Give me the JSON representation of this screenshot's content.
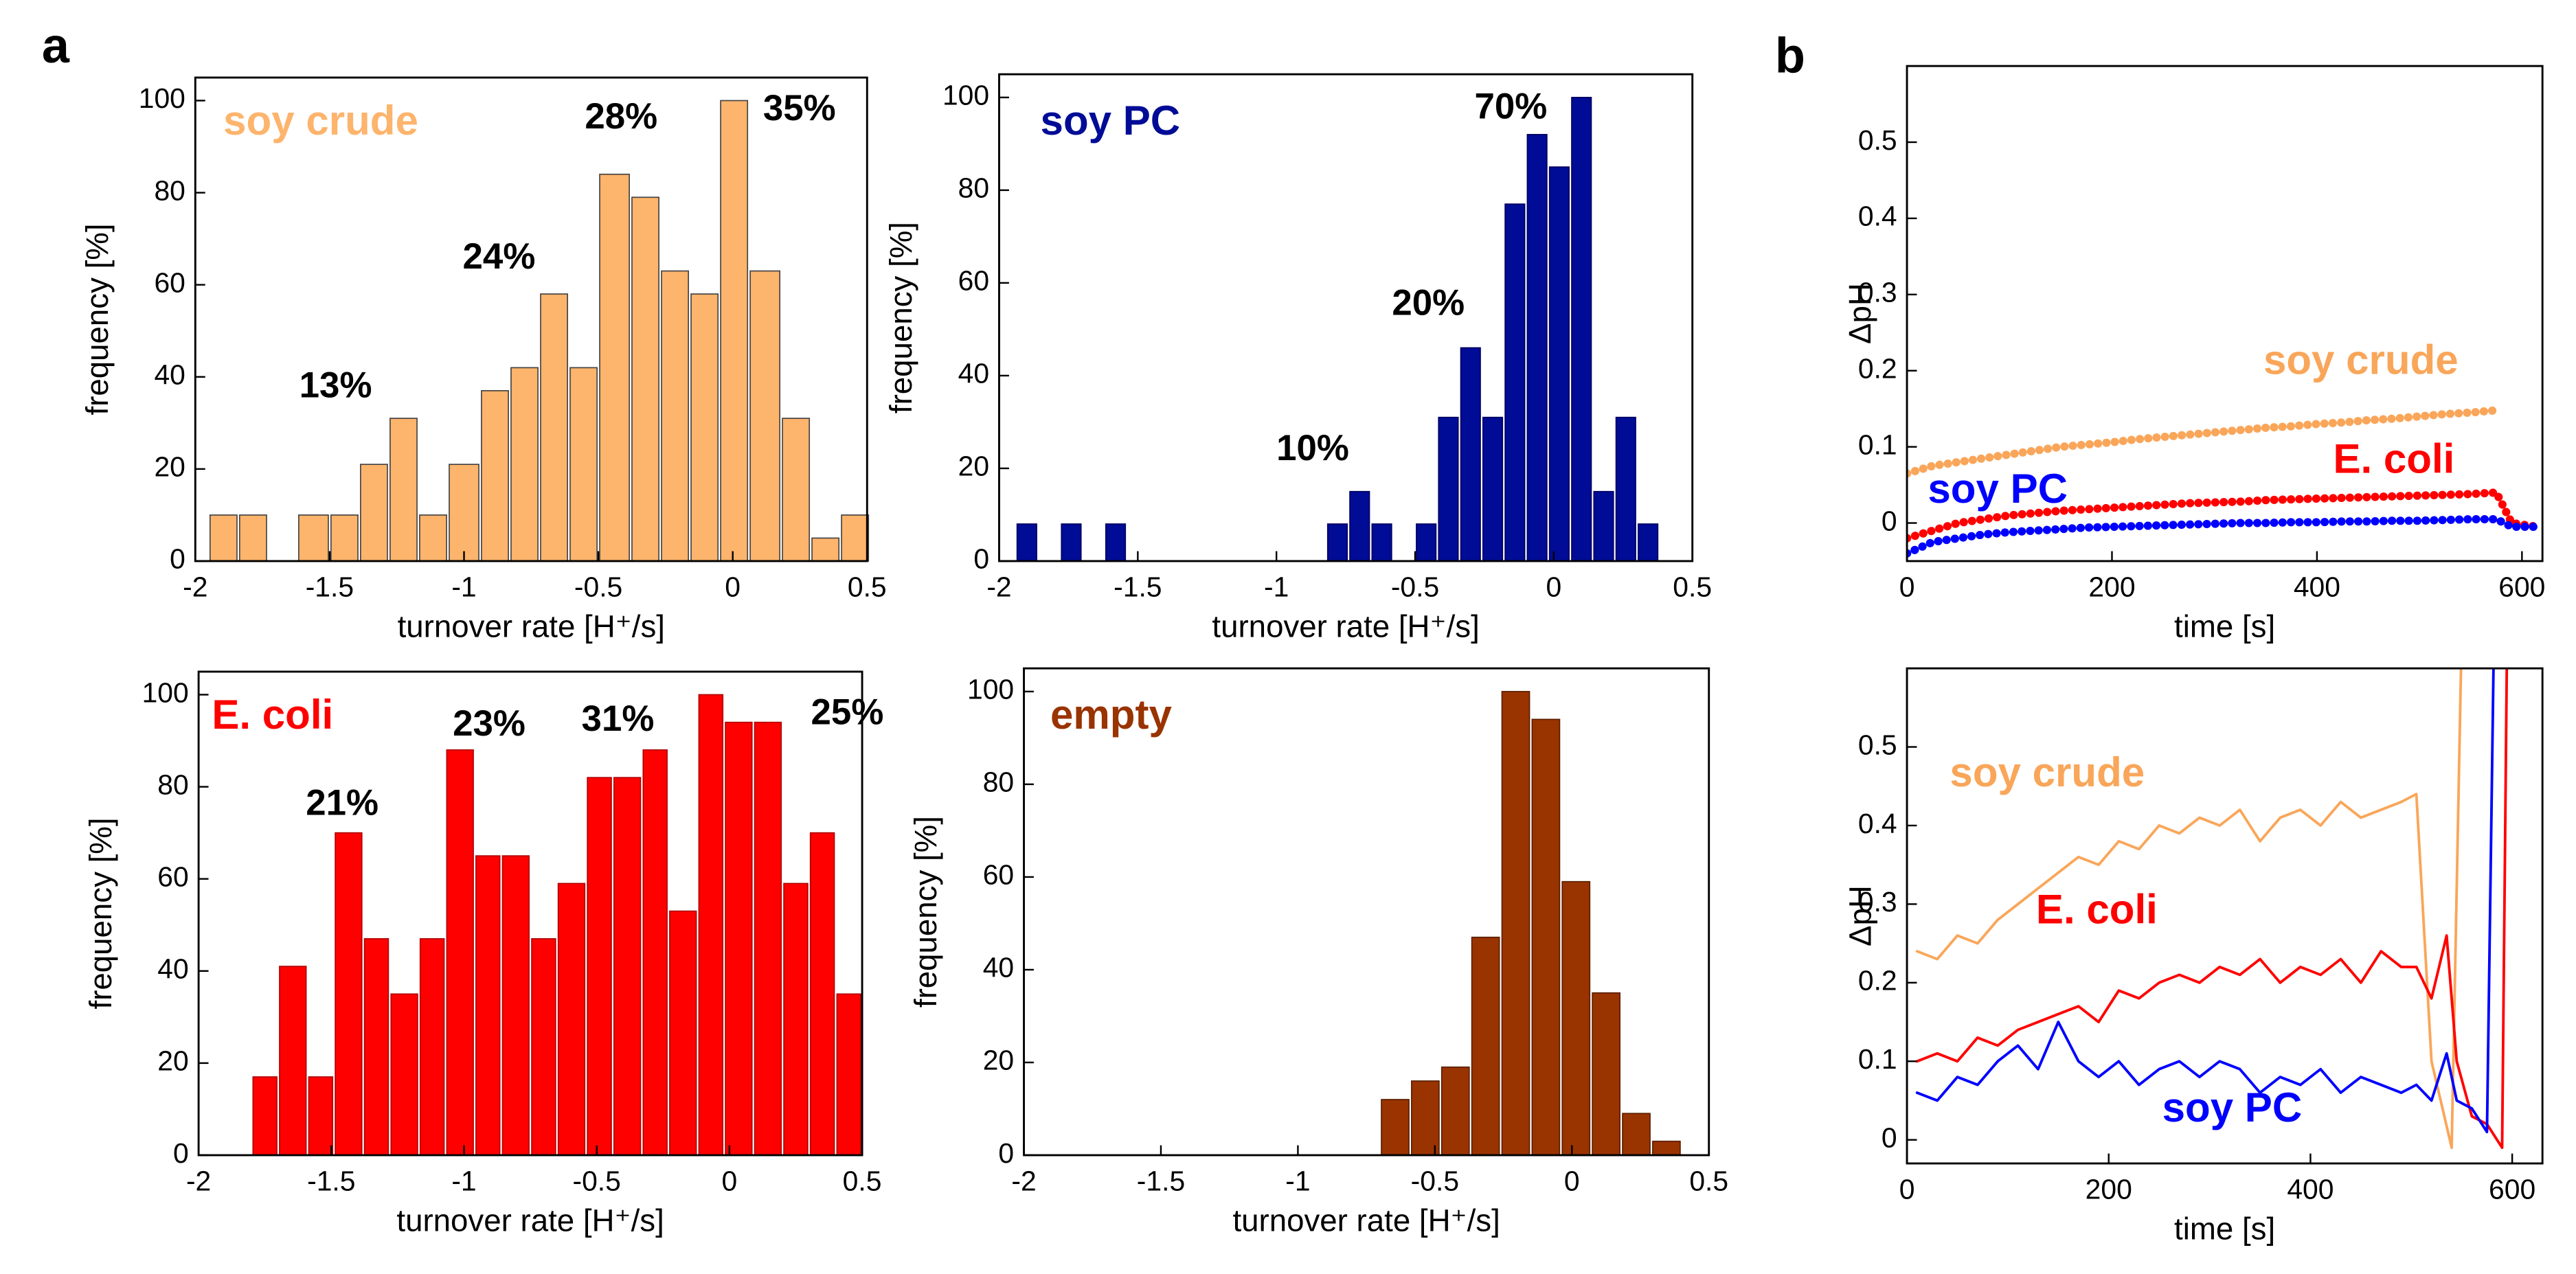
{
  "panel_labels": [
    "a",
    "b"
  ],
  "chart_data": [
    {
      "type": "histogram",
      "label": "soy crude",
      "color": "#fdb46c",
      "edge": "#444444",
      "xlabel": "turnover rate [H⁺/s]",
      "ylabel": "frequency [%]",
      "bins": [
        -1.95,
        -1.84,
        -1.73,
        -1.62,
        -1.5,
        -1.39,
        -1.28,
        -1.17,
        -1.06,
        -0.94,
        -0.83,
        -0.72,
        -0.61,
        -0.5,
        -0.38,
        -0.27,
        -0.16,
        -0.05,
        0.06,
        0.18,
        0.29,
        0.4,
        0.51
      ],
      "values": [
        10,
        10,
        0,
        10,
        10,
        21,
        31,
        10,
        21,
        37,
        42,
        58,
        42,
        84,
        79,
        63,
        58,
        100,
        63,
        31,
        5,
        10
      ],
      "xlim": [
        -2,
        0.5
      ],
      "xticks": [
        -2,
        -1.5,
        -1,
        -0.5,
        0,
        0.5
      ],
      "ylim": [
        0,
        105
      ],
      "yticks": [
        0,
        20,
        40,
        60,
        80,
        100
      ],
      "annotations": [
        "13%",
        "24%",
        "28%",
        "35%"
      ]
    },
    {
      "type": "histogram",
      "label": "soy PC",
      "color": "#000c96",
      "edge": "#000060",
      "xlabel": "turnover rate [H⁺/s]",
      "ylabel": "frequency [%]",
      "bins": [
        -1.94,
        -1.86,
        -1.78,
        -1.7,
        -1.62,
        -1.54,
        -1.46,
        -1.38,
        -1.3,
        -1.22,
        -1.14,
        -1.06,
        -0.98,
        -0.9,
        -0.82,
        -0.74,
        -0.66,
        -0.58,
        -0.5,
        -0.42,
        -0.34,
        -0.26,
        -0.18,
        -0.1,
        -0.02,
        0.06,
        0.14,
        0.22,
        0.3,
        0.38
      ],
      "values": [
        8,
        0,
        8,
        0,
        8,
        0,
        0,
        0,
        0,
        0,
        0,
        0,
        0,
        0,
        8,
        15,
        8,
        0,
        8,
        31,
        46,
        31,
        77,
        92,
        85,
        100,
        15,
        31,
        8
      ],
      "xlim": [
        -2,
        0.5
      ],
      "xticks": [
        -2,
        -1.5,
        -1,
        -0.5,
        0,
        0.5
      ],
      "ylim": [
        0,
        105
      ],
      "yticks": [
        0,
        20,
        40,
        60,
        80,
        100
      ],
      "annotations": [
        "10%",
        "20%",
        "70%"
      ]
    },
    {
      "type": "histogram",
      "label": "E. coli",
      "color": "#ff0000",
      "edge": "#b00000",
      "xlabel": "turnover rate [H⁺/s]",
      "ylabel": "frequency [%]",
      "bins": [
        -1.8,
        -1.7,
        -1.59,
        -1.49,
        -1.38,
        -1.28,
        -1.17,
        -1.07,
        -0.96,
        -0.86,
        -0.75,
        -0.65,
        -0.54,
        -0.44,
        -0.33,
        -0.23,
        -0.12,
        -0.02,
        0.09,
        0.2,
        0.3,
        0.4,
        0.5
      ],
      "values": [
        17,
        41,
        17,
        70,
        47,
        35,
        47,
        88,
        65,
        65,
        47,
        59,
        82,
        82,
        88,
        53,
        100,
        94,
        94,
        59,
        70,
        35
      ],
      "xlim": [
        -2,
        0.5
      ],
      "xticks": [
        -2,
        -1.5,
        -1,
        -0.5,
        0,
        0.5
      ],
      "ylim": [
        0,
        105
      ],
      "yticks": [
        0,
        20,
        40,
        60,
        80,
        100
      ],
      "annotations": [
        "21%",
        "23%",
        "31%",
        "25%"
      ]
    },
    {
      "type": "histogram",
      "label": "empty",
      "color": "#993300",
      "edge": "#5a1e00",
      "xlabel": "turnover rate [H⁺/s]",
      "ylabel": "frequency [%]",
      "bins": [
        -0.7,
        -0.59,
        -0.48,
        -0.37,
        -0.26,
        -0.15,
        -0.04,
        0.07,
        0.18,
        0.29,
        0.4
      ],
      "values": [
        12,
        16,
        19,
        47,
        100,
        94,
        59,
        35,
        9,
        3
      ],
      "xlim": [
        -2,
        0.5
      ],
      "xticks": [
        -2,
        -1.5,
        -1,
        -0.5,
        0,
        0.5
      ],
      "ylim": [
        0,
        105
      ],
      "yticks": [
        0,
        20,
        40,
        60,
        80,
        100
      ],
      "annotations": []
    },
    {
      "type": "line",
      "xlabel": "time [s]",
      "ylabel": "ΔpH",
      "stroke": 5,
      "xlim": [
        0,
        620
      ],
      "xticks": [
        0,
        200,
        400,
        600
      ],
      "ylim": [
        -0.05,
        0.6
      ],
      "yticks": [
        0,
        0.1,
        0.2,
        0.3,
        0.4,
        0.5
      ],
      "series": [
        {
          "name": "soy crude",
          "color": "#f9a65a",
          "x": [
            0,
            25,
            50,
            75,
            100,
            125,
            150,
            175,
            200,
            225,
            250,
            275,
            300,
            325,
            350,
            375,
            400,
            425,
            450,
            475,
            500,
            525,
            550,
            575
          ],
          "values": [
            0.065,
            0.075,
            0.08,
            0.085,
            0.09,
            0.095,
            0.1,
            0.103,
            0.106,
            0.11,
            0.113,
            0.116,
            0.119,
            0.122,
            0.125,
            0.127,
            0.13,
            0.132,
            0.135,
            0.137,
            0.14,
            0.143,
            0.145,
            0.148
          ]
        },
        {
          "name": "E. coli",
          "color": "#ff0000",
          "x": [
            0,
            25,
            50,
            75,
            100,
            125,
            150,
            175,
            200,
            225,
            250,
            275,
            300,
            325,
            350,
            375,
            400,
            425,
            450,
            475,
            500,
            525,
            550,
            575,
            590,
            615
          ],
          "values": [
            -0.02,
            -0.01,
            0,
            0.005,
            0.01,
            0.013,
            0.016,
            0.018,
            0.02,
            0.022,
            0.024,
            0.026,
            0.027,
            0.028,
            0.03,
            0.031,
            0.032,
            0.033,
            0.034,
            0.035,
            0.036,
            0.037,
            0.038,
            0.04,
            0,
            -0.005
          ]
        },
        {
          "name": "soy PC",
          "color": "#0000ff",
          "x": [
            0,
            25,
            50,
            75,
            100,
            125,
            150,
            175,
            200,
            225,
            250,
            275,
            300,
            325,
            350,
            375,
            400,
            425,
            450,
            475,
            500,
            525,
            550,
            575,
            590,
            615
          ],
          "values": [
            -0.04,
            -0.025,
            -0.02,
            -0.015,
            -0.012,
            -0.01,
            -0.008,
            -0.006,
            -0.005,
            -0.004,
            -0.003,
            -0.002,
            -0.001,
            0,
            0,
            0.001,
            0.001,
            0.002,
            0.002,
            0.003,
            0.003,
            0.004,
            0.005,
            0.005,
            -0.005,
            -0.005
          ]
        }
      ]
    },
    {
      "type": "line",
      "xlabel": "time [s]",
      "ylabel": "ΔpH",
      "stroke": 1.6,
      "xlim": [
        0,
        630
      ],
      "xticks": [
        0,
        200,
        400,
        600
      ],
      "ylim": [
        -0.03,
        0.6
      ],
      "yticks": [
        0,
        0.1,
        0.2,
        0.3,
        0.4,
        0.5
      ],
      "series": [
        {
          "name": "soy crude",
          "color": "#f9a65a",
          "x": [
            10,
            30,
            50,
            70,
            90,
            110,
            130,
            150,
            170,
            190,
            210,
            230,
            250,
            270,
            290,
            310,
            330,
            350,
            370,
            390,
            410,
            430,
            450,
            470,
            490,
            505,
            520,
            540,
            550
          ],
          "values": [
            0.24,
            0.23,
            0.26,
            0.25,
            0.28,
            0.3,
            0.32,
            0.34,
            0.36,
            0.35,
            0.38,
            0.37,
            0.4,
            0.39,
            0.41,
            0.4,
            0.42,
            0.38,
            0.41,
            0.42,
            0.4,
            0.43,
            0.41,
            0.42,
            0.43,
            0.44,
            0.1,
            -0.01,
            0.65
          ]
        },
        {
          "name": "E. coli",
          "color": "#ff0000",
          "x": [
            10,
            30,
            50,
            70,
            90,
            110,
            130,
            150,
            170,
            190,
            210,
            230,
            250,
            270,
            290,
            310,
            330,
            350,
            370,
            390,
            410,
            430,
            450,
            470,
            490,
            505,
            520,
            535,
            545,
            560,
            575,
            590,
            595
          ],
          "values": [
            0.1,
            0.11,
            0.1,
            0.13,
            0.12,
            0.14,
            0.15,
            0.16,
            0.17,
            0.15,
            0.19,
            0.18,
            0.2,
            0.21,
            0.2,
            0.22,
            0.21,
            0.23,
            0.2,
            0.22,
            0.21,
            0.23,
            0.2,
            0.24,
            0.22,
            0.22,
            0.18,
            0.26,
            0.1,
            0.03,
            0.02,
            -0.01,
            0.65
          ]
        },
        {
          "name": "soy PC",
          "color": "#0000ff",
          "x": [
            10,
            30,
            50,
            70,
            90,
            110,
            130,
            150,
            170,
            190,
            210,
            230,
            250,
            270,
            290,
            310,
            330,
            350,
            370,
            390,
            410,
            430,
            450,
            470,
            490,
            505,
            520,
            535,
            545,
            560,
            575,
            582
          ],
          "values": [
            0.06,
            0.05,
            0.08,
            0.07,
            0.1,
            0.12,
            0.09,
            0.15,
            0.1,
            0.08,
            0.1,
            0.07,
            0.09,
            0.1,
            0.08,
            0.1,
            0.09,
            0.06,
            0.08,
            0.07,
            0.09,
            0.06,
            0.08,
            0.07,
            0.06,
            0.07,
            0.05,
            0.11,
            0.05,
            0.04,
            0.01,
            0.65
          ]
        }
      ]
    }
  ]
}
